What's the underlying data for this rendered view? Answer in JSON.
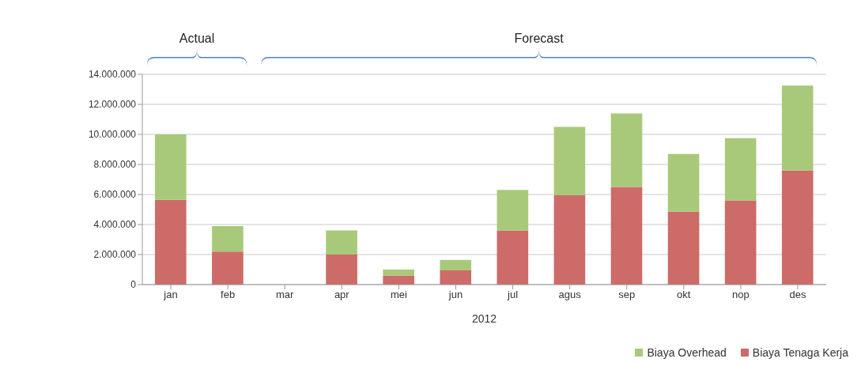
{
  "chart_data": {
    "type": "bar",
    "stacked": true,
    "xlabel": "2012",
    "categories": [
      "jan",
      "feb",
      "mar",
      "apr",
      "mei",
      "jun",
      "jul",
      "agus",
      "sep",
      "okt",
      "nop",
      "des"
    ],
    "series": [
      {
        "name": "Biaya Tenaga Kerja",
        "color": "#cd6b68",
        "values": [
          5650000,
          2200000,
          0,
          2000000,
          600000,
          950000,
          3600000,
          5950000,
          6500000,
          4850000,
          5600000,
          7600000
        ]
      },
      {
        "name": "Biaya Overhead",
        "color": "#a9c97a",
        "values": [
          4350000,
          1700000,
          0,
          1600000,
          400000,
          700000,
          2700000,
          4550000,
          4900000,
          3850000,
          4150000,
          5650000
        ]
      }
    ],
    "ylim": [
      0,
      14000000
    ],
    "yticks": [
      {
        "value": 0,
        "label": "0"
      },
      {
        "value": 2000000,
        "label": "2.000.000"
      },
      {
        "value": 4000000,
        "label": "4.000.000"
      },
      {
        "value": 6000000,
        "label": "6.000.000"
      },
      {
        "value": 8000000,
        "label": "8.000.000"
      },
      {
        "value": 10000000,
        "label": "10.000.000"
      },
      {
        "value": 12000000,
        "label": "12.000.000"
      },
      {
        "value": 14000000,
        "label": "14.000.000"
      }
    ],
    "grid": "y",
    "legend": "bottom right",
    "annotations": [
      "Actual",
      "Forecast"
    ]
  }
}
